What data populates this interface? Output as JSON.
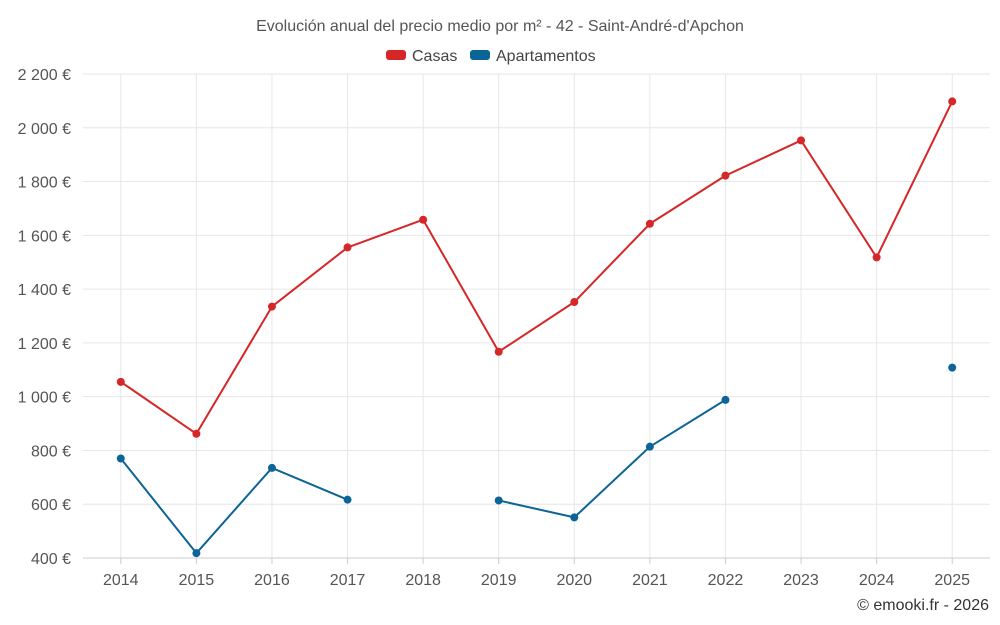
{
  "chart_data": {
    "type": "line",
    "title": "Evolución anual del precio medio por m² - 42 - Saint-André-d'Apchon",
    "categories": [
      "2014",
      "2015",
      "2016",
      "2017",
      "2018",
      "2019",
      "2020",
      "2021",
      "2022",
      "2023",
      "2024",
      "2025"
    ],
    "ylim": [
      400,
      2200
    ],
    "yticks": [
      400,
      600,
      800,
      1000,
      1200,
      1400,
      1600,
      1800,
      2000,
      2200
    ],
    "ytick_labels": [
      "400 €",
      "600 €",
      "800 €",
      "1 000 €",
      "1 200 €",
      "1 400 €",
      "1 600 €",
      "1 800 €",
      "2 000 €",
      "2 200 €"
    ],
    "xlabel": "",
    "ylabel": "",
    "grid": true,
    "legend_position": "top-center",
    "series": [
      {
        "name": "Casas",
        "color": "#d62728",
        "values": [
          1055,
          862,
          1335,
          1555,
          1658,
          1167,
          1352,
          1643,
          1822,
          1953,
          1518,
          2098
        ]
      },
      {
        "name": "Apartamentos",
        "color": "#0d6496",
        "values": [
          770,
          418,
          735,
          617,
          null,
          614,
          551,
          814,
          988,
          null,
          null,
          1108
        ]
      }
    ]
  },
  "credit": "© emooki.fr - 2026"
}
